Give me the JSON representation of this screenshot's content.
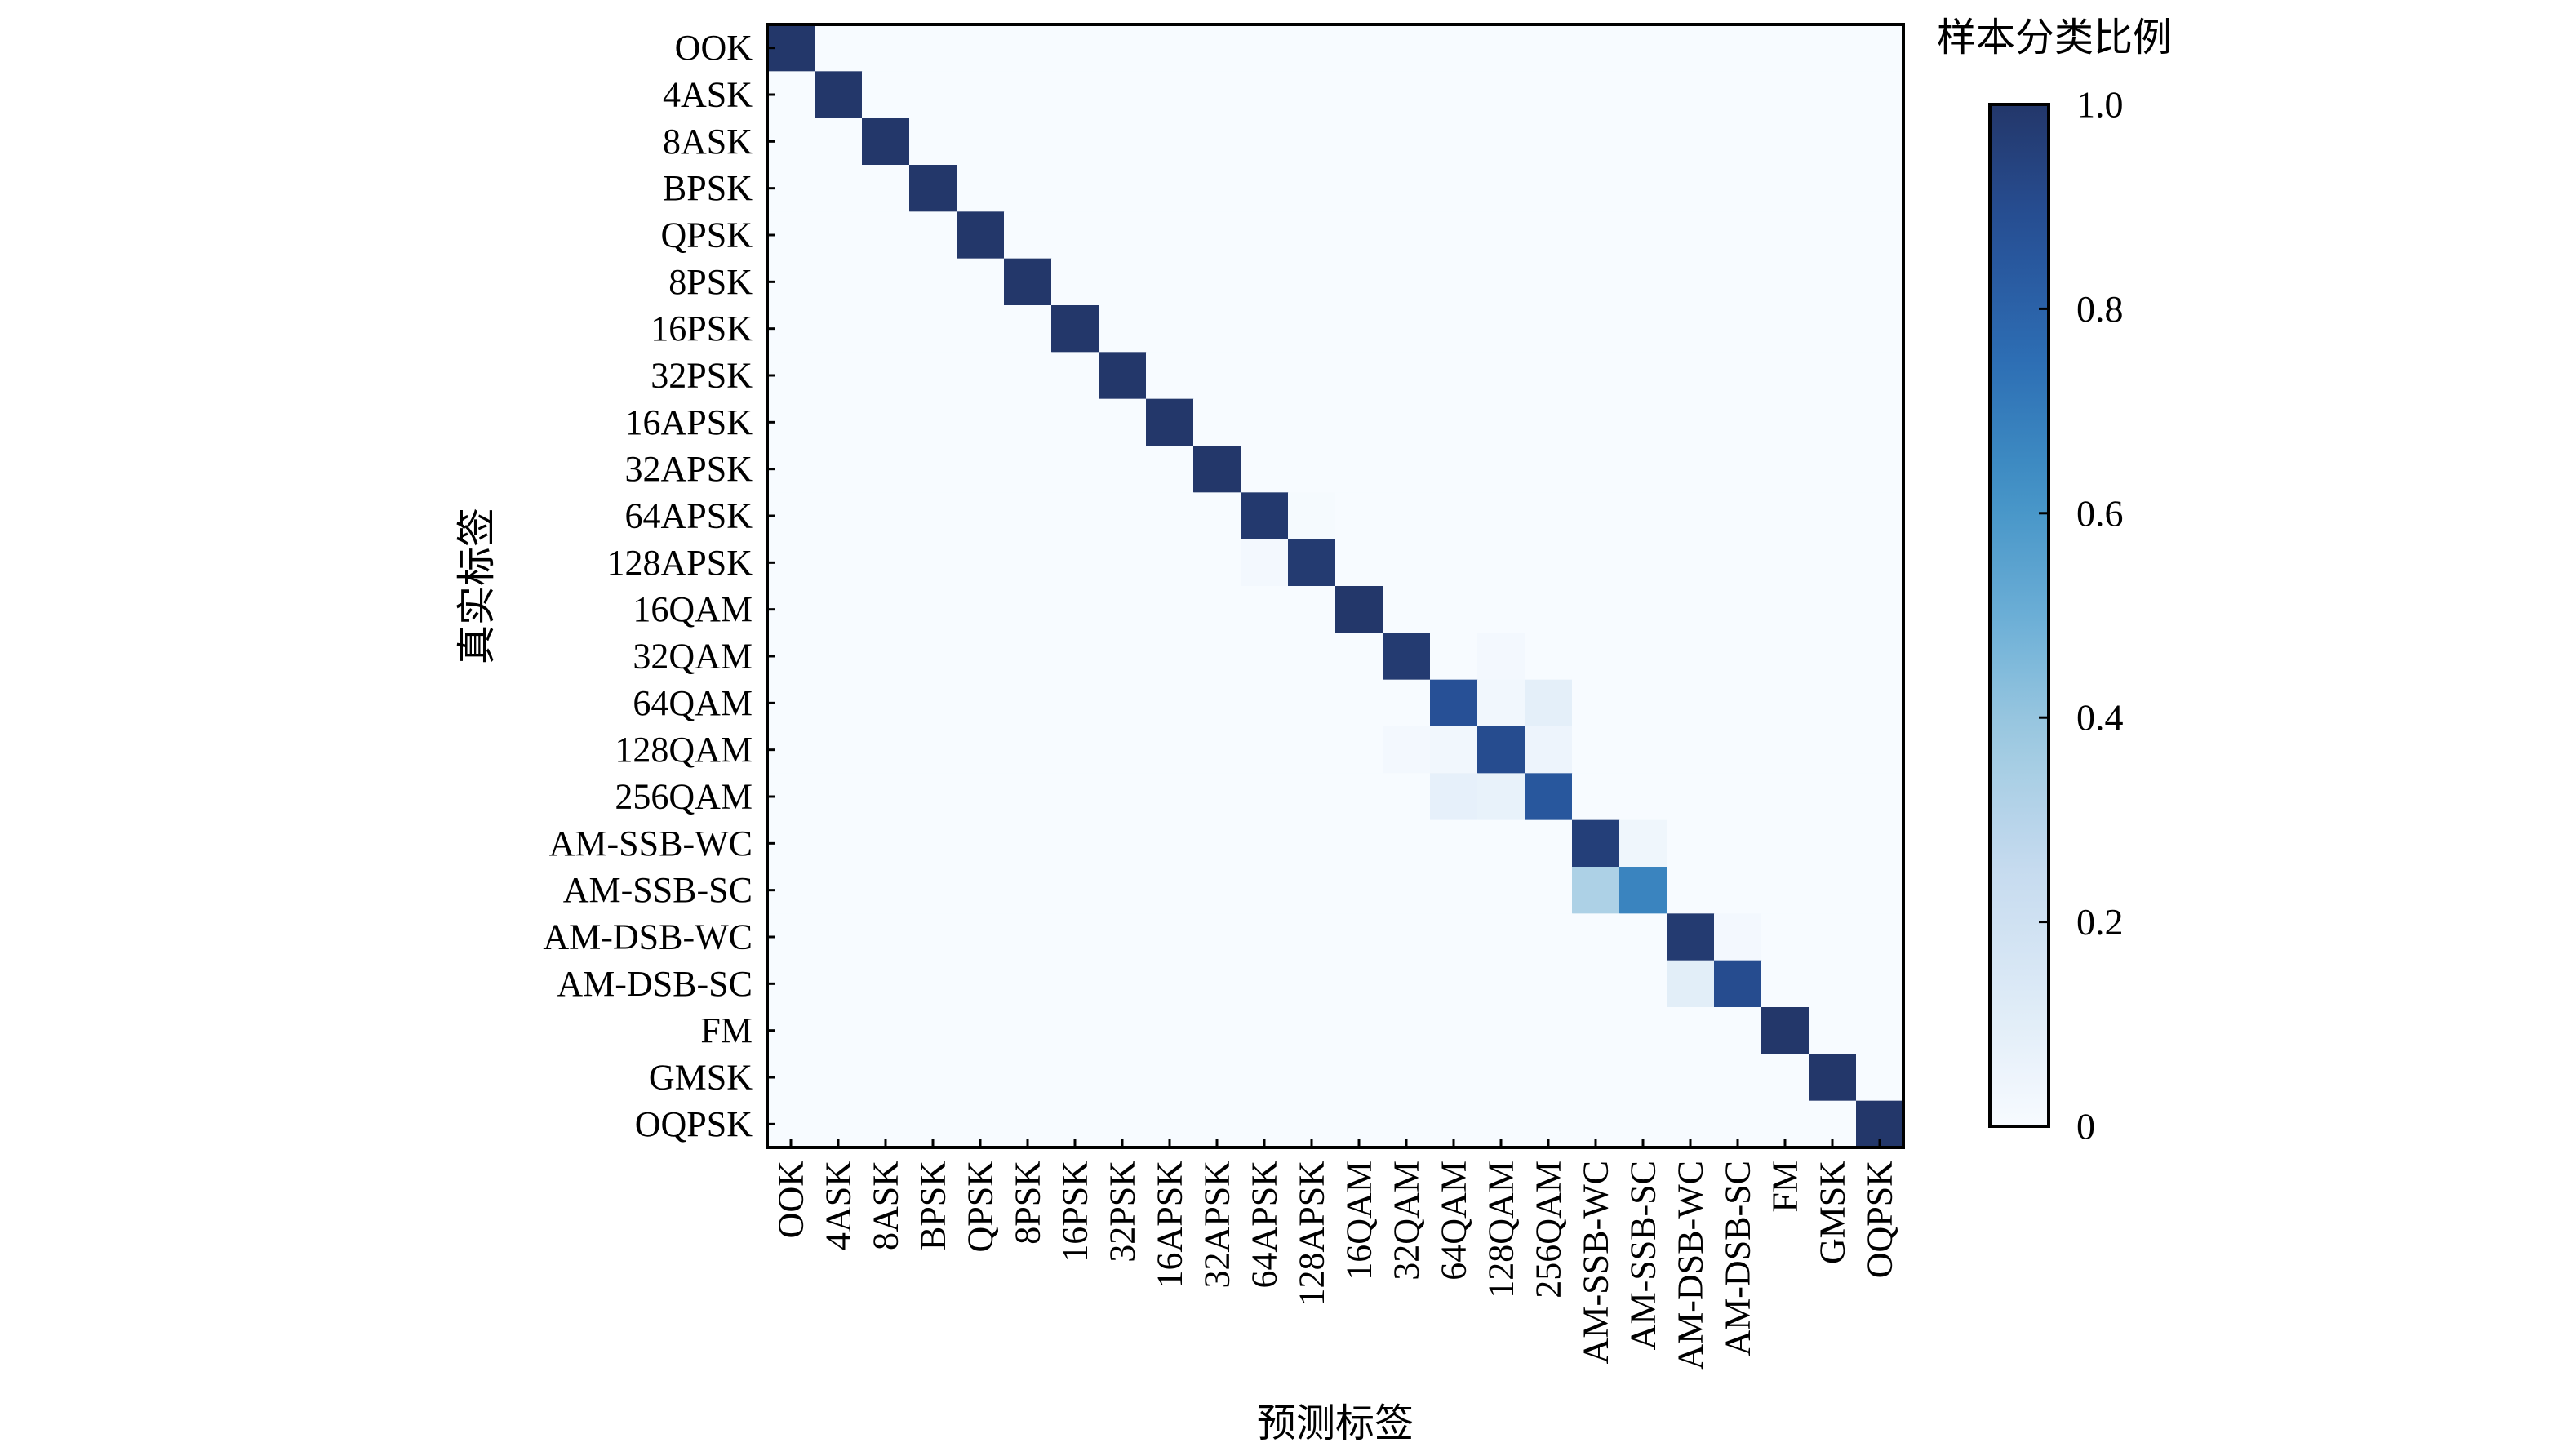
{
  "chart_data": {
    "type": "heatmap",
    "xlabel": "预测标签",
    "ylabel": "真实标签",
    "colorbar": {
      "title": "样本分类比例",
      "min": 0,
      "max": 1.0,
      "ticks": [
        {
          "value": 0,
          "label": "0"
        },
        {
          "value": 0.2,
          "label": "0.2"
        },
        {
          "value": 0.4,
          "label": "0.4"
        },
        {
          "value": 0.6,
          "label": "0.6"
        },
        {
          "value": 0.8,
          "label": "0.8"
        },
        {
          "value": 1.0,
          "label": "1.0"
        }
      ],
      "colormap": "Blues",
      "color_low": "#f7fbff",
      "color_high": "#23376a"
    },
    "categories": [
      "OOK",
      "4ASK",
      "8ASK",
      "BPSK",
      "QPSK",
      "8PSK",
      "16PSK",
      "32PSK",
      "16APSK",
      "32APSK",
      "64APSK",
      "128APSK",
      "16QAM",
      "32QAM",
      "64QAM",
      "128QAM",
      "256QAM",
      "AM-SSB-WC",
      "AM-SSB-SC",
      "AM-DSB-WC",
      "AM-DSB-SC",
      "FM",
      "GMSK",
      "OQPSK"
    ],
    "matrix": [
      [
        1,
        0,
        0,
        0,
        0,
        0,
        0,
        0,
        0,
        0,
        0,
        0,
        0,
        0,
        0,
        0,
        0,
        0,
        0,
        0,
        0,
        0,
        0,
        0
      ],
      [
        0,
        1,
        0,
        0,
        0,
        0,
        0,
        0,
        0,
        0,
        0,
        0,
        0,
        0,
        0,
        0,
        0,
        0,
        0,
        0,
        0,
        0,
        0,
        0
      ],
      [
        0,
        0,
        1,
        0,
        0,
        0,
        0,
        0,
        0,
        0,
        0,
        0,
        0,
        0,
        0,
        0,
        0,
        0,
        0,
        0,
        0,
        0,
        0,
        0
      ],
      [
        0,
        0,
        0,
        1,
        0,
        0,
        0,
        0,
        0,
        0,
        0,
        0,
        0,
        0,
        0,
        0,
        0,
        0,
        0,
        0,
        0,
        0,
        0,
        0
      ],
      [
        0,
        0,
        0,
        0,
        1,
        0,
        0,
        0,
        0,
        0,
        0,
        0,
        0,
        0,
        0,
        0,
        0,
        0,
        0,
        0,
        0,
        0,
        0,
        0
      ],
      [
        0,
        0,
        0,
        0,
        0,
        1,
        0,
        0,
        0,
        0,
        0,
        0,
        0,
        0,
        0,
        0,
        0,
        0,
        0,
        0,
        0,
        0,
        0,
        0
      ],
      [
        0,
        0,
        0,
        0,
        0,
        0,
        1,
        0,
        0,
        0,
        0,
        0,
        0,
        0,
        0,
        0,
        0,
        0,
        0,
        0,
        0,
        0,
        0,
        0
      ],
      [
        0,
        0,
        0,
        0,
        0,
        0,
        0,
        1,
        0,
        0,
        0,
        0,
        0,
        0,
        0,
        0,
        0,
        0,
        0,
        0,
        0,
        0,
        0,
        0
      ],
      [
        0,
        0,
        0,
        0,
        0,
        0,
        0,
        0,
        1,
        0,
        0,
        0,
        0,
        0,
        0,
        0,
        0,
        0,
        0,
        0,
        0,
        0,
        0,
        0
      ],
      [
        0,
        0,
        0,
        0,
        0,
        0,
        0,
        0,
        0,
        1,
        0,
        0,
        0,
        0,
        0,
        0,
        0,
        0,
        0,
        0,
        0,
        0,
        0,
        0
      ],
      [
        0,
        0,
        0,
        0,
        0,
        0,
        0,
        0,
        0,
        0,
        0.99,
        0.01,
        0,
        0,
        0,
        0,
        0,
        0,
        0,
        0,
        0,
        0,
        0,
        0
      ],
      [
        0,
        0,
        0,
        0,
        0,
        0,
        0,
        0,
        0,
        0,
        0.02,
        0.98,
        0,
        0,
        0,
        0,
        0,
        0,
        0,
        0,
        0,
        0,
        0,
        0
      ],
      [
        0,
        0,
        0,
        0,
        0,
        0,
        0,
        0,
        0,
        0,
        0,
        0,
        1,
        0,
        0,
        0,
        0,
        0,
        0,
        0,
        0,
        0,
        0,
        0
      ],
      [
        0,
        0,
        0,
        0,
        0,
        0,
        0,
        0,
        0,
        0,
        0,
        0,
        0,
        0.98,
        0,
        0.02,
        0,
        0,
        0,
        0,
        0,
        0,
        0,
        0
      ],
      [
        0,
        0,
        0,
        0,
        0,
        0,
        0,
        0,
        0,
        0,
        0,
        0,
        0,
        0,
        0.88,
        0.03,
        0.09,
        0,
        0,
        0,
        0,
        0,
        0,
        0
      ],
      [
        0,
        0,
        0,
        0,
        0,
        0,
        0,
        0,
        0,
        0,
        0,
        0,
        0,
        0.02,
        0.03,
        0.9,
        0.05,
        0,
        0,
        0,
        0,
        0,
        0,
        0
      ],
      [
        0,
        0,
        0,
        0,
        0,
        0,
        0,
        0,
        0,
        0,
        0,
        0,
        0,
        0,
        0.08,
        0.07,
        0.85,
        0,
        0,
        0,
        0,
        0,
        0,
        0
      ],
      [
        0,
        0,
        0,
        0,
        0,
        0,
        0,
        0,
        0,
        0,
        0,
        0,
        0,
        0,
        0,
        0,
        0,
        0.96,
        0.04,
        0,
        0,
        0,
        0,
        0
      ],
      [
        0,
        0,
        0,
        0,
        0,
        0,
        0,
        0,
        0,
        0,
        0,
        0,
        0,
        0,
        0,
        0,
        0,
        0.33,
        0.67,
        0,
        0,
        0,
        0,
        0
      ],
      [
        0,
        0,
        0,
        0,
        0,
        0,
        0,
        0,
        0,
        0,
        0,
        0,
        0,
        0,
        0,
        0,
        0,
        0,
        0,
        0.98,
        0.02,
        0,
        0,
        0
      ],
      [
        0,
        0,
        0,
        0,
        0,
        0,
        0,
        0,
        0,
        0,
        0,
        0,
        0,
        0,
        0,
        0,
        0,
        0,
        0,
        0.1,
        0.9,
        0,
        0,
        0
      ],
      [
        0,
        0,
        0,
        0,
        0,
        0,
        0,
        0,
        0,
        0,
        0,
        0,
        0,
        0,
        0,
        0,
        0,
        0,
        0,
        0,
        0,
        1,
        0,
        0
      ],
      [
        0,
        0,
        0,
        0,
        0,
        0,
        0,
        0,
        0,
        0,
        0,
        0,
        0,
        0,
        0,
        0,
        0,
        0,
        0,
        0,
        0,
        0,
        1,
        0
      ],
      [
        0,
        0,
        0,
        0,
        0,
        0,
        0,
        0,
        0,
        0,
        0,
        0,
        0,
        0,
        0,
        0,
        0,
        0,
        0,
        0,
        0,
        0,
        0,
        1
      ]
    ]
  }
}
